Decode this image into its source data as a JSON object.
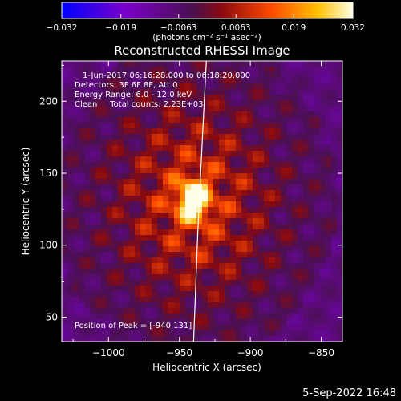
{
  "chart_data": {
    "type": "heatmap",
    "title": "Reconstructed RHESSI Image",
    "xlabel": "Heliocentric X (arcsec)",
    "ylabel": "Heliocentric Y (arcsec)",
    "xlim": [
      -1033,
      -835
    ],
    "ylim": [
      33,
      228
    ],
    "x_ticks": [
      -1000,
      -950,
      -900,
      -850
    ],
    "y_ticks": [
      50,
      100,
      150,
      200
    ],
    "x_tick_labels": [
      "−1000",
      "−950",
      "−900",
      "−850"
    ],
    "y_tick_labels": [
      "50",
      "100",
      "150",
      "200"
    ],
    "colorbar": {
      "min": -0.032,
      "max": 0.032,
      "ticks": [
        -0.032,
        -0.019,
        -0.0063,
        0.0063,
        0.019,
        0.032
      ],
      "tick_labels": [
        "−0.032",
        "−0.019",
        "−0.0063",
        "0.0063",
        "0.019",
        "0.032"
      ],
      "units_text": "(photons cm⁻² s⁻¹ asec⁻²)"
    },
    "annotations": [
      "1-Jun-2017 06:16:28.000 to 06:18:20.000",
      "Detectors: 3F 6F 8F, Att 0",
      "Energy Range: 6.0 - 12.0 keV",
      "Clean     Total counts: 2.23E+03"
    ],
    "peak_label": "Position of Peak = [-940,131]",
    "peak": {
      "x": -940,
      "y": 131,
      "value": 0.032
    },
    "limb_line": [
      [
        -940,
        33
      ],
      [
        -937,
        110
      ],
      [
        -935,
        150
      ],
      [
        -933,
        190
      ],
      [
        -931,
        228
      ]
    ],
    "grid": false,
    "legend": "none"
  },
  "footer": {
    "date": "5-Sep-2022 16:48"
  },
  "colors": {
    "background": "#000000",
    "colormap": [
      "#0000ff",
      "#7a00c8",
      "#5a1a6a",
      "#b01010",
      "#ff5000",
      "#ffc000",
      "#ffffe0"
    ]
  }
}
